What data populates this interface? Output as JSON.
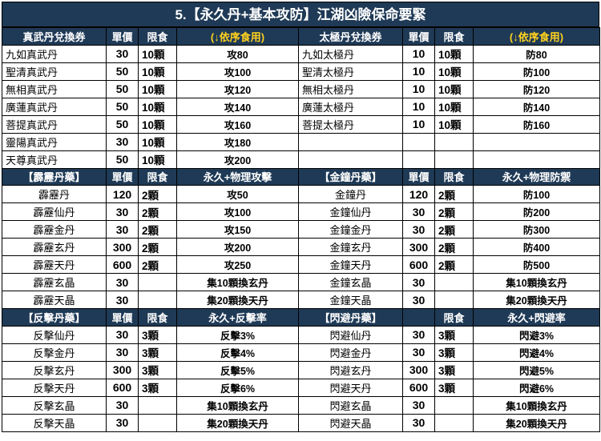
{
  "title": "5.【永久丹+基本攻防】江湖凶險保命要緊",
  "sections": [
    {
      "left_header": [
        "真武丹兌換券",
        "單價",
        "限食",
        "(↓依序食用)"
      ],
      "right_header": [
        "太極丹兌換券",
        "單價",
        "限食",
        "(↓依序食用)"
      ],
      "header_style": "yellow",
      "name_align": "left",
      "rows": [
        {
          "l": [
            "九如真武丹",
            "30",
            "10顆",
            "攻80"
          ],
          "r": [
            "九如太極丹",
            "10",
            "10顆",
            "防80"
          ]
        },
        {
          "l": [
            "聖清真武丹",
            "50",
            "10顆",
            "攻100"
          ],
          "r": [
            "聖清太極丹",
            "10",
            "10顆",
            "防100"
          ]
        },
        {
          "l": [
            "無相真武丹",
            "50",
            "10顆",
            "攻120"
          ],
          "r": [
            "無相太極丹",
            "10",
            "10顆",
            "防120"
          ]
        },
        {
          "l": [
            "廣蓮真武丹",
            "50",
            "10顆",
            "攻140"
          ],
          "r": [
            "廣蓮太極丹",
            "10",
            "10顆",
            "防140"
          ]
        },
        {
          "l": [
            "菩提真武丹",
            "50",
            "10顆",
            "攻160"
          ],
          "r": [
            "菩提太極丹",
            "10",
            "10顆",
            "防160"
          ]
        },
        {
          "l": [
            "靈陽真武丹",
            "30",
            "10顆",
            "攻180"
          ],
          "r": [
            "",
            "",
            "",
            ""
          ]
        },
        {
          "l": [
            "天尊真武丹",
            "50",
            "10顆",
            "攻200"
          ],
          "r": [
            "",
            "",
            "",
            ""
          ]
        }
      ]
    },
    {
      "left_header": [
        "【霹靂丹藥】",
        "單價",
        "限食",
        "永久+物理攻擊"
      ],
      "right_header": [
        "【金鐘丹藥】",
        "單價",
        "限食",
        "永久+物理防禦"
      ],
      "header_style": "white",
      "name_align": "center",
      "rows": [
        {
          "l": [
            "霹靂丹",
            "120",
            "2顆",
            "攻50"
          ],
          "r": [
            "金鐘丹",
            "120",
            "2顆",
            "防100"
          ]
        },
        {
          "l": [
            "霹靂仙丹",
            "30",
            "2顆",
            "攻100"
          ],
          "r": [
            "金鐘仙丹",
            "30",
            "2顆",
            "防200"
          ]
        },
        {
          "l": [
            "霹靂金丹",
            "30",
            "2顆",
            "攻150"
          ],
          "r": [
            "金鐘金丹",
            "30",
            "2顆",
            "防300"
          ]
        },
        {
          "l": [
            "霹靂玄丹",
            "300",
            "2顆",
            "攻200"
          ],
          "r": [
            "金鐘玄丹",
            "300",
            "2顆",
            "防400"
          ]
        },
        {
          "l": [
            "霹靂天丹",
            "600",
            "2顆",
            "攻250"
          ],
          "r": [
            "金鐘天丹",
            "600",
            "2顆",
            "防500"
          ]
        },
        {
          "l": [
            "霹靂玄晶",
            "30",
            "",
            "集10顆換玄丹"
          ],
          "r": [
            "金鐘玄晶",
            "30",
            "",
            "集10顆換玄丹"
          ]
        },
        {
          "l": [
            "霹靂天晶",
            "30",
            "",
            "集20顆換天丹"
          ],
          "r": [
            "金鐘天晶",
            "30",
            "",
            "集20顆換天丹"
          ]
        }
      ]
    },
    {
      "left_header": [
        "【反擊丹藥】",
        "單價",
        "限食",
        "永久+反擊率"
      ],
      "right_header": [
        "【閃避丹藥】",
        "",
        "限食",
        "永久+閃避率"
      ],
      "header_style": "white",
      "name_align": "center",
      "rows": [
        {
          "l": [
            "反擊仙丹",
            "30",
            "3顆",
            "反擊3%"
          ],
          "r": [
            "閃避仙丹",
            "30",
            "3顆",
            "閃避3%"
          ]
        },
        {
          "l": [
            "反擊金丹",
            "30",
            "3顆",
            "反擊4%"
          ],
          "r": [
            "閃避金丹",
            "30",
            "3顆",
            "閃避4%"
          ]
        },
        {
          "l": [
            "反擊玄丹",
            "300",
            "3顆",
            "反擊5%"
          ],
          "r": [
            "閃避玄丹",
            "300",
            "3顆",
            "閃避5%"
          ]
        },
        {
          "l": [
            "反擊天丹",
            "600",
            "3顆",
            "反擊6%"
          ],
          "r": [
            "閃避天丹",
            "600",
            "3顆",
            "閃避6%"
          ]
        },
        {
          "l": [
            "反擊玄晶",
            "30",
            "",
            "集10顆換玄丹"
          ],
          "r": [
            "閃避玄晶",
            "30",
            "",
            "集10顆換玄丹"
          ]
        },
        {
          "l": [
            "反擊天晶",
            "30",
            "",
            "集20顆換天丹"
          ],
          "r": [
            "閃避天晶",
            "30",
            "",
            "集20顆換天丹"
          ]
        }
      ]
    }
  ],
  "colors": {
    "header_bg": "#1f3a56",
    "header_text": "#ffffff",
    "header_accent": "#ffd21e",
    "grid": "#000000"
  }
}
